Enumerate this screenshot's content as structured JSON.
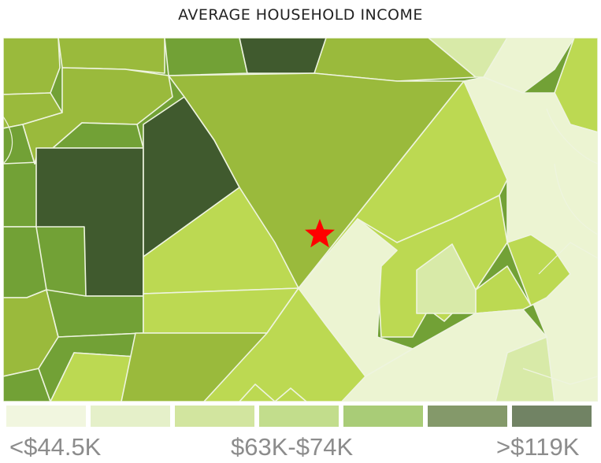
{
  "title": "AVERAGE HOUSEHOLD INCOME",
  "marker": {
    "icon": "star-icon",
    "color": "#ff0000"
  },
  "legend": {
    "swatch_colors": [
      "#f1f6df",
      "#e5f0c9",
      "#d2e59f",
      "#c2dd8c",
      "#a9cc77",
      "#84996a",
      "#718364"
    ],
    "labels": {
      "low": "<$44.5K",
      "mid": "$63K-$74K",
      "high": ">$119K"
    }
  },
  "colors": {
    "lightest": "#ecf4d2",
    "light": "#d8eaa8",
    "medium_light": "#bcd952",
    "medium": "#9aba3c",
    "medium_dark": "#72a136",
    "dark": "#405a2e",
    "boundary": "#f4f8ea"
  }
}
